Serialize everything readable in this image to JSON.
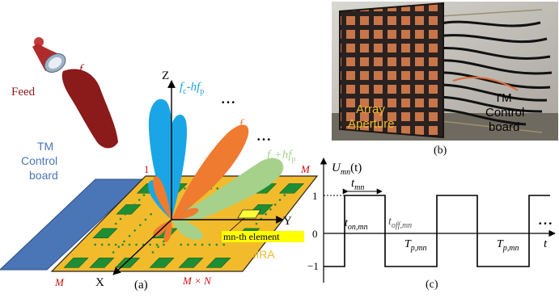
{
  "panel_a": {
    "feed_label": "Feed",
    "fc_feed": "f",
    "fc_feed_sub": "c",
    "beam_minus": {
      "f": "f",
      "sub1": "c",
      "mid": "-hf",
      "sub2": "p"
    },
    "beam_center": {
      "f": "f",
      "sub1": "c"
    },
    "beam_plus": {
      "f": "f",
      "sub1": "c",
      "mid": "+hf",
      "sub2": "p"
    },
    "ellipsis": "• • •",
    "axis_z": "Z",
    "axis_y": "Y",
    "axis_x": "X",
    "corner_top_left": "1",
    "corner_top_right": "M",
    "corner_bottom_left": "M",
    "corner_bottom_right": "M × N",
    "control_board": [
      "TM",
      "Control",
      "board"
    ],
    "element_label": "mn-th element",
    "array_label": "TMRA",
    "caption": "(a)",
    "colors": {
      "feed": "#8b1a1a",
      "board": "#4a76b8",
      "array": "#f2bb2c",
      "patch": "#1e8e35",
      "beam_minus": "#1aa6e6",
      "beam_center": "#ee7b30",
      "beam_plus": "#a6d18b",
      "highlight": "#ffff00"
    }
  },
  "panel_b": {
    "label_array": [
      "Array",
      "Aperture"
    ],
    "label_board": [
      "TM",
      "Control",
      "board"
    ],
    "caption": "(b)"
  },
  "panel_c": {
    "y_label_main": "U",
    "y_label_sub": "mn",
    "y_label_arg": "(t)",
    "t_mn_main": "t",
    "t_mn_sub": "mn",
    "t_on_main": "t",
    "t_on_sub": "on,mn",
    "t_off_main": "t",
    "t_off_sub": "off,mn",
    "tp1_main": "T",
    "tp1_sub": "p,mn",
    "tp2_main": "T",
    "tp2_sub": "p,mn",
    "x_label": "t",
    "level_high": "1",
    "level_zero": "0",
    "level_low": "−1",
    "ellipsis": "• • •",
    "caption": "(c)"
  }
}
